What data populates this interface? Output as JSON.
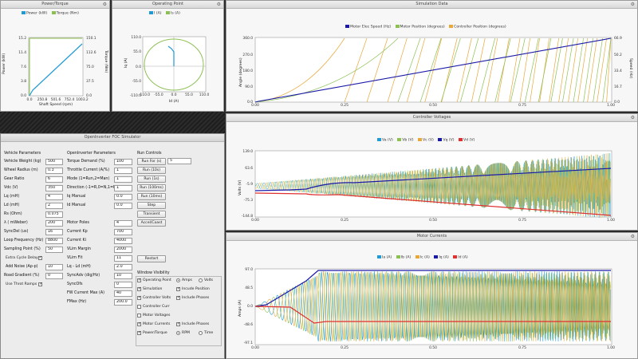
{
  "power_torque": {
    "title": "Power/Torque",
    "legend": [
      "Power (kW)",
      "Torque (Nm)"
    ],
    "colors": {
      "power": "#1f9ad6",
      "torque": "#8cc152"
    },
    "yleft_label": "Power (kW)",
    "yright_label": "Torque (Nm)",
    "xlabel": "Shaft Speed (rpm)",
    "yleft_ticks": [
      "15.2",
      "11.4",
      "7.6",
      "3.8",
      "0.0"
    ],
    "yright_ticks": [
      "150.1",
      "112.6",
      "75.0",
      "37.5",
      "0.0"
    ],
    "x_ticks": [
      "0.0",
      "250.8",
      "501.6",
      "752.4",
      "1003.2"
    ]
  },
  "operating_point": {
    "title": "Operating Point",
    "legend": [
      "I (A)",
      "Is (A)"
    ],
    "colors": {
      "i": "#1f9ad6",
      "is": "#8cc152"
    },
    "ylabel": "Iq (A)",
    "xlabel": "Id (A)",
    "y_ticks": [
      "110.0",
      "55.0",
      "0.0",
      "-55.0",
      "-110.0"
    ],
    "x_ticks": [
      "-110.0",
      "-55.0",
      "0.0",
      "55.0",
      "110.0"
    ]
  },
  "simulation_data": {
    "title": "Simulation Data",
    "legend": [
      "Motor Elec Speed (Hz)",
      "Motor Position (degrees)",
      "Controller Position (degrees)"
    ],
    "colors": {
      "speed": "#1a1aa8",
      "motor_pos": "#8cc152",
      "ctrl_pos": "#e8a838"
    },
    "ylabel": "Angle (degrees)",
    "yright_label": "Speed (Hz)",
    "y_ticks": [
      "360.0",
      "270.0",
      "180.0",
      "90.0",
      "0.0"
    ],
    "yright_ticks": [
      "66.9",
      "50.2",
      "33.4",
      "16.7",
      "0.0"
    ],
    "x_ticks": [
      "0.00",
      "0.25",
      "0.50",
      "0.75",
      "1.00"
    ]
  },
  "controller_voltages": {
    "title": "Controller Voltages",
    "legend": [
      "Va (V)",
      "Vb (V)",
      "Vc (V)",
      "Vq (V)",
      "Vd (V)"
    ],
    "colors": {
      "va": "#1f9ad6",
      "vb": "#8cc152",
      "vc": "#e8a838",
      "vq": "#1a1aa8",
      "vd": "#e03030"
    },
    "ylabel": "Volts (V)",
    "y_ticks": [
      "139.0",
      "63.6",
      "-5.9",
      "-75.3",
      "-144.8"
    ],
    "x_ticks": [
      "0.00",
      "0.25",
      "0.50",
      "0.75",
      "1.00"
    ]
  },
  "motor_currents": {
    "title": "Motor Currents",
    "legend": [
      "Ia (A)",
      "Ib (A)",
      "Ic (A)",
      "Iq (A)",
      "Id (A)"
    ],
    "colors": {
      "ia": "#1f9ad6",
      "ib": "#8cc152",
      "ic": "#e8a838",
      "iq": "#1a1aa8",
      "id": "#e03030"
    },
    "ylabel": "Amps (A)",
    "y_ticks": [
      "97.0",
      "48.5",
      "0.0",
      "-48.6",
      "-97.1"
    ],
    "x_ticks": [
      "0.00",
      "0.25",
      "0.50",
      "0.75",
      "1.00"
    ]
  },
  "simulator": {
    "title": "OpenInverter FOC Simulator",
    "vehicle_header": "Vehicle Parameters",
    "vehicle": [
      {
        "label": "Vehicle Weight (kg)",
        "value": "500"
      },
      {
        "label": "Wheel Radius (m)",
        "value": "0.3"
      },
      {
        "label": "Gear Ratio",
        "value": "6"
      },
      {
        "label": "Vdc (V)",
        "value": "350"
      },
      {
        "label": "Lq (mH)",
        "value": "4"
      },
      {
        "label": "Ld (mH)",
        "value": "2"
      },
      {
        "label": "Rs (Ohm)",
        "value": "0.075"
      },
      {
        "label": "λ ( mWeber)",
        "value": "200"
      },
      {
        "label": "SyncDel (us)",
        "value": "16"
      },
      {
        "label": "Loop Frequency (Hz)",
        "value": "8800"
      },
      {
        "label": "Sampling Point (%)",
        "value": "50"
      }
    ],
    "extra_cycle_delay": "Extra Cycle Delay",
    "add_noise": {
      "label": "Add Noise (Ap-p)",
      "value": "10"
    },
    "road_gradient": {
      "label": "Road Gradient (%)",
      "value": "0"
    },
    "use_throt_ramps": "Use Throt Ramps",
    "inverter_header": "OpenInverter Parameters",
    "inverter": [
      {
        "label": "Torque Demand (%)",
        "value": "100"
      },
      {
        "label": "Throttle Current (A/%)",
        "value": "1"
      },
      {
        "label": "Mode (1=Run,2=Man)",
        "value": "1"
      },
      {
        "label": "Direction (-1=R,0=N,1=F)",
        "value": "1"
      },
      {
        "label": "Iq Manual",
        "value": "0.0"
      },
      {
        "label": "Id Manual",
        "value": "0.0"
      },
      {
        "label": "",
        "value": ""
      },
      {
        "label": "Motor Poles",
        "value": "4"
      },
      {
        "label": "Current Kp",
        "value": "700"
      },
      {
        "label": "Current Ki",
        "value": "4000"
      },
      {
        "label": "VLim Margin",
        "value": "2000"
      },
      {
        "label": "VLim Flt",
        "value": "11"
      },
      {
        "label": "Lq - Ld (mH)",
        "value": "2.0"
      },
      {
        "label": "SyncAdv (dig/Hz)",
        "value": "10"
      },
      {
        "label": "SyncOfs",
        "value": "0"
      },
      {
        "label": "FW Current Max (A)",
        "value": "40"
      },
      {
        "label": "FMax (Hz)",
        "value": "200.0"
      }
    ],
    "run_header": "Run Controls",
    "run_for_label": "Run For (s)",
    "run_for_value": "5",
    "run_buttons": [
      "Run (10s)",
      "Run (1s)",
      "Run (100ms)",
      "Run (10ms)",
      "Step",
      "Transient",
      "Accel/Coast"
    ],
    "restart": "Restart",
    "window_header": "Window Visibility",
    "operating_point": "Operating Point",
    "amps": "Amps",
    "volts": "Volts",
    "windows": [
      {
        "label": "Simulation",
        "checked": true,
        "extra": "Incude Position",
        "extra_checked": true
      },
      {
        "label": "Controller Volts",
        "checked": true,
        "extra": "Include Phases",
        "extra_checked": true
      },
      {
        "label": "Controller Curr",
        "checked": false
      },
      {
        "label": "Motor Voltages",
        "checked": false
      },
      {
        "label": "Motor Currents",
        "checked": true,
        "extra": "Include Phases",
        "extra_checked": true
      }
    ],
    "power_torque": "Power/Torque",
    "rpm": "RPM",
    "time": "Time"
  }
}
